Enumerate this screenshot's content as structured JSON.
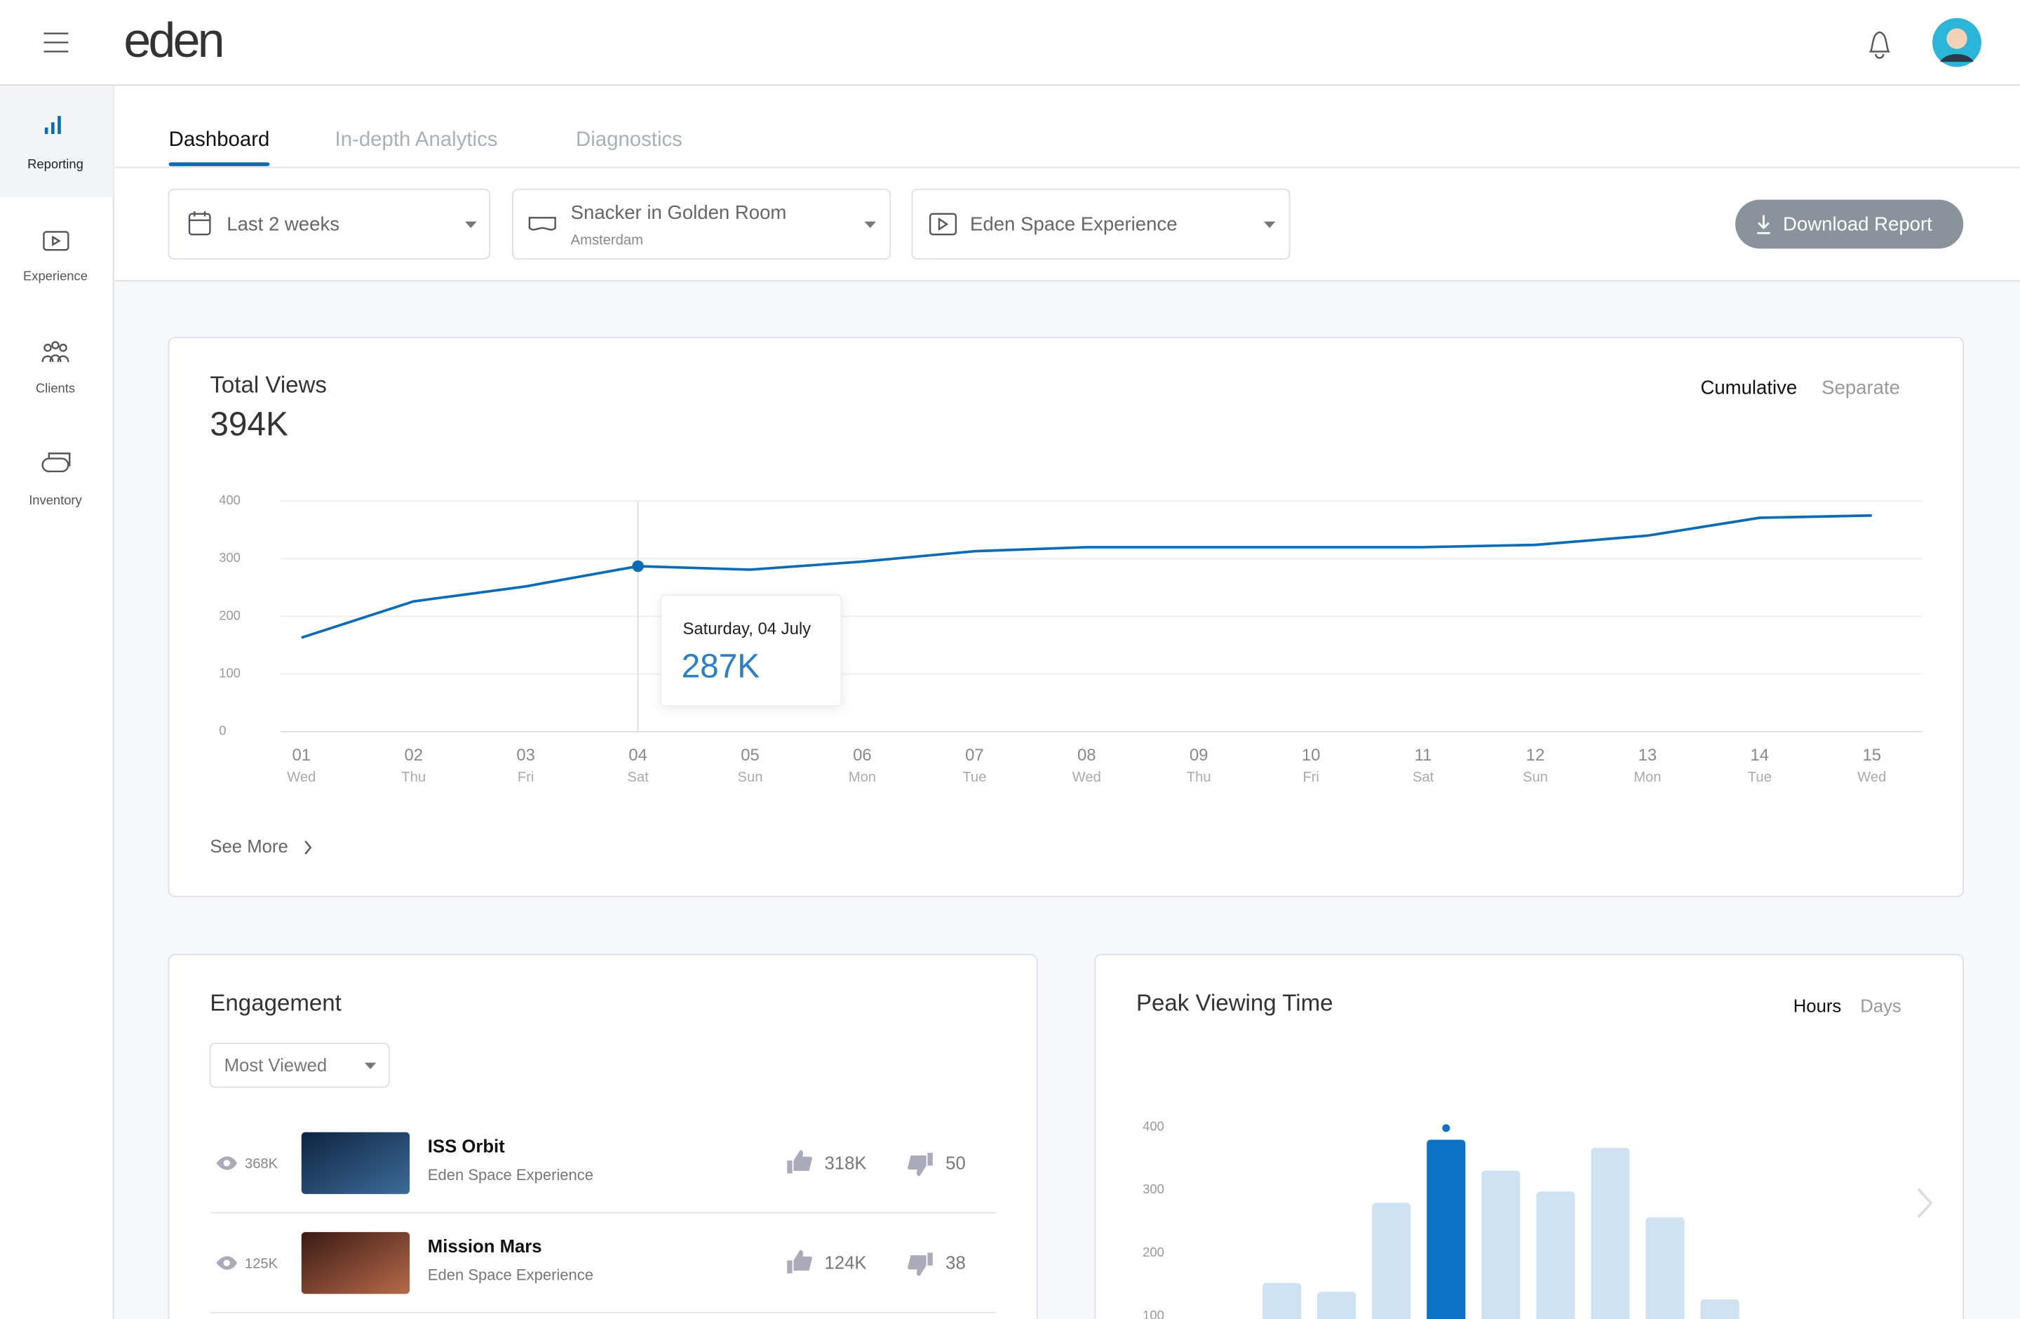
{
  "header": {
    "logo": "eden"
  },
  "sidebar": {
    "items": [
      "Reporting",
      "Experience",
      "Clients",
      "Inventory"
    ],
    "active": 0
  },
  "tabs": {
    "items": [
      "Dashboard",
      "In-depth Analytics",
      "Diagnostics"
    ],
    "active": 0
  },
  "filters": {
    "date": "Last 2 weeks",
    "location": "Snacker in Golden Room",
    "location_sub": "Amsterdam",
    "experience": "Eden Space Experience",
    "download": "Download Report"
  },
  "total_views": {
    "title": "Total Views",
    "total": "394K",
    "toggle": [
      "Cumulative",
      "Separate"
    ],
    "see_more": "See More",
    "tooltip": {
      "date": "Saturday, 04 July",
      "value": "287K"
    },
    "chart": {
      "type": "line",
      "categories": [
        "01",
        "02",
        "03",
        "04",
        "05",
        "06",
        "07",
        "08",
        "09",
        "10",
        "11",
        "12",
        "13",
        "14",
        "15"
      ],
      "weekdays": [
        "Wed",
        "Thu",
        "Fri",
        "Sat",
        "Sun",
        "Mon",
        "Tue",
        "Wed",
        "Thu",
        "Fri",
        "Sat",
        "Sun",
        "Mon",
        "Tue",
        "Wed"
      ],
      "values": [
        163,
        226,
        252,
        287,
        281,
        295,
        313,
        320,
        320,
        320,
        320,
        324,
        340,
        371,
        375
      ],
      "color": "#0b6bb5",
      "ylim": [
        0,
        400
      ],
      "yticks": [
        0,
        100,
        200,
        300,
        400
      ],
      "grid": true,
      "highlight": 3
    }
  },
  "engagement": {
    "title": "Engagement",
    "sort": "Most Viewed",
    "rows": [
      {
        "views": "368K",
        "title": "ISS Orbit",
        "subtitle": "Eden Space Experience",
        "likes": "318K",
        "dislikes": "50"
      },
      {
        "views": "125K",
        "title": "Mission Mars",
        "subtitle": "Eden Space Experience",
        "likes": "124K",
        "dislikes": "38"
      }
    ]
  },
  "peak_viewing": {
    "title": "Peak Viewing Time",
    "toggle": [
      "Hours",
      "Days"
    ],
    "chart": {
      "type": "bar",
      "values": [
        153,
        139,
        280,
        380,
        331,
        298,
        367,
        257,
        127
      ],
      "color": "#cfe2f3",
      "highlight_color": "#0b72c4",
      "highlight": 3,
      "ylim": [
        0,
        400
      ],
      "yticks": [
        100,
        200,
        300,
        400
      ]
    }
  }
}
